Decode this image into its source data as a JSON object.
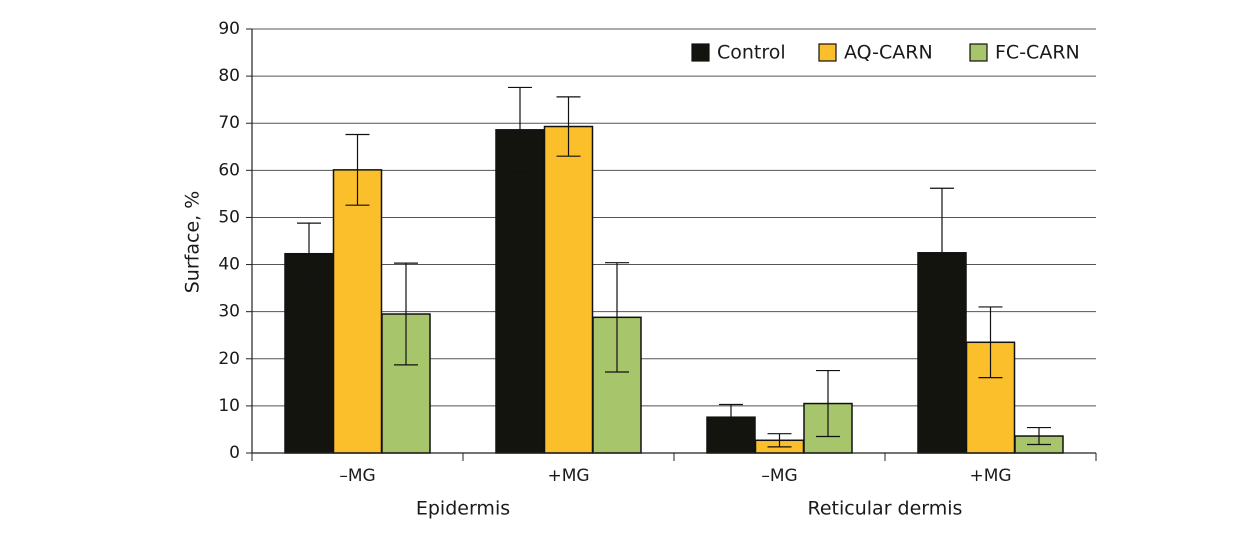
{
  "chart_data": {
    "type": "bar",
    "title": "",
    "xlabel": "",
    "ylabel": "Surface, %",
    "ylim": [
      0,
      90
    ],
    "yticks": [
      0,
      10,
      20,
      30,
      40,
      50,
      60,
      70,
      80,
      90
    ],
    "grid": true,
    "legend_position": "top-right",
    "categories": [
      "–MG",
      "+MG",
      "–MG",
      "+MG"
    ],
    "category_groups": [
      {
        "label": "Epidermis",
        "categories": [
          0,
          1
        ]
      },
      {
        "label": "Reticular dermis",
        "categories": [
          2,
          3
        ]
      }
    ],
    "series": [
      {
        "name": "Control",
        "color": "#14140f",
        "values": [
          42.3,
          68.6,
          7.6,
          42.5
        ],
        "errors": [
          6.5,
          9.0,
          2.7,
          13.7
        ]
      },
      {
        "name": "AQ-CARN",
        "color": "#fbbf2b",
        "values": [
          60.1,
          69.3,
          2.7,
          23.5
        ],
        "errors": [
          7.5,
          6.3,
          1.4,
          7.5
        ]
      },
      {
        "name": "FC-CARN",
        "color": "#a7c56a",
        "values": [
          29.5,
          28.8,
          10.5,
          3.6
        ],
        "errors": [
          10.8,
          11.6,
          7.0,
          1.8
        ]
      }
    ]
  }
}
